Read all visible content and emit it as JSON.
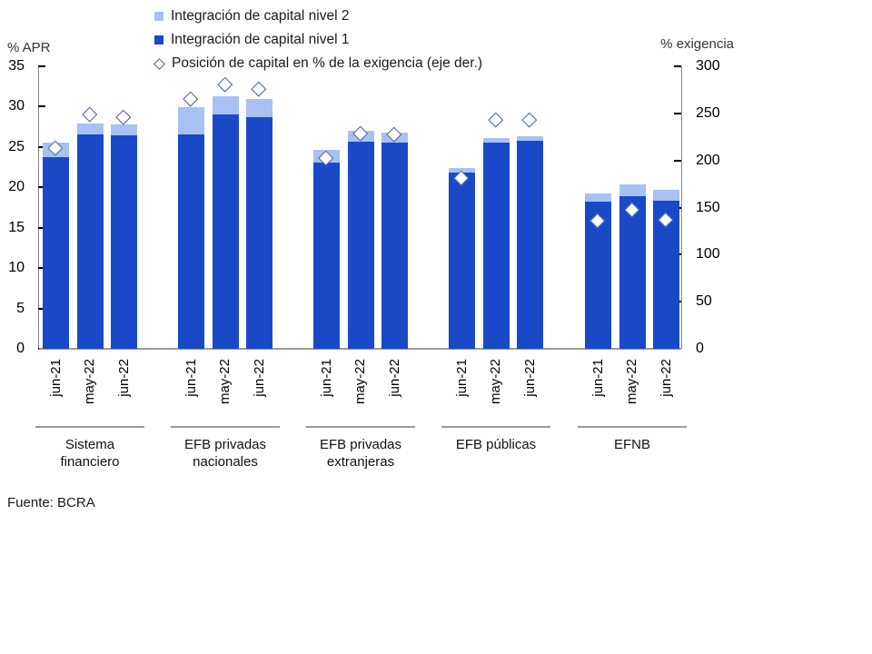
{
  "colors": {
    "nivel1": "#1A49C8",
    "nivel2": "#A7C1F2",
    "diamond_border": "#3F5EA6",
    "diamond_fill": "#FFFFFF",
    "axis_line": "#8A8A8A",
    "baseline": "#9B9B9B"
  },
  "legend": {
    "items": [
      {
        "label": "Integración de capital nivel 2",
        "marker": "square-light"
      },
      {
        "label": "Integración de capital nivel 1",
        "marker": "square-dark"
      },
      {
        "label": "Posición de capital en % de la exigencia (eje der.)",
        "marker": "diamond"
      }
    ]
  },
  "axes": {
    "left_title": "% APR",
    "right_title": "% exigencia"
  },
  "source": "Fuente: BCRA",
  "chart_data": {
    "type": "bar",
    "stacked": true,
    "title": "",
    "categories": [
      "jun-21",
      "may-22",
      "jun-22"
    ],
    "groups": [
      "Sistema financiero",
      "EFB privadas nacionales",
      "EFB privadas extranjeras",
      "EFB públicas",
      "EFNB"
    ],
    "group_label_lines": [
      [
        "Sistema",
        "financiero"
      ],
      [
        "EFB privadas",
        "nacionales"
      ],
      [
        "EFB privadas",
        "extranjeras"
      ],
      [
        "EFB públicas"
      ],
      [
        "EFNB"
      ]
    ],
    "left_axis": {
      "title": "% APR",
      "min": 0,
      "max": 35,
      "step": 5,
      "ticks": [
        35,
        30,
        25,
        20,
        15,
        10,
        5,
        0
      ]
    },
    "right_axis": {
      "title": "% exigencia",
      "min": 0,
      "max": 300,
      "step": 50,
      "ticks": [
        300,
        250,
        200,
        150,
        100,
        50,
        0
      ]
    },
    "series": [
      {
        "name": "Integración de capital nivel 1",
        "type": "bar",
        "axis": "left",
        "values": [
          [
            23.7,
            26.6,
            26.5
          ],
          [
            26.6,
            29.0,
            28.7
          ],
          [
            23.1,
            25.7,
            25.5
          ],
          [
            21.8,
            25.6,
            25.8
          ],
          [
            18.2,
            18.9,
            18.3
          ]
        ]
      },
      {
        "name": "Integración de capital nivel 2",
        "type": "bar",
        "axis": "left",
        "values": [
          [
            1.8,
            1.3,
            1.3
          ],
          [
            3.3,
            2.3,
            2.2
          ],
          [
            1.5,
            1.3,
            1.3
          ],
          [
            0.6,
            0.5,
            0.5
          ],
          [
            1.0,
            1.5,
            1.4
          ]
        ]
      },
      {
        "name": "Posición de capital en % de la exigencia (eje der.)",
        "type": "scatter",
        "marker": "diamond",
        "axis": "right",
        "values": [
          [
            213,
            249,
            246
          ],
          [
            265,
            280,
            276
          ],
          [
            202,
            228,
            227
          ],
          [
            181,
            243,
            243
          ],
          [
            136,
            147,
            137
          ]
        ]
      }
    ]
  }
}
